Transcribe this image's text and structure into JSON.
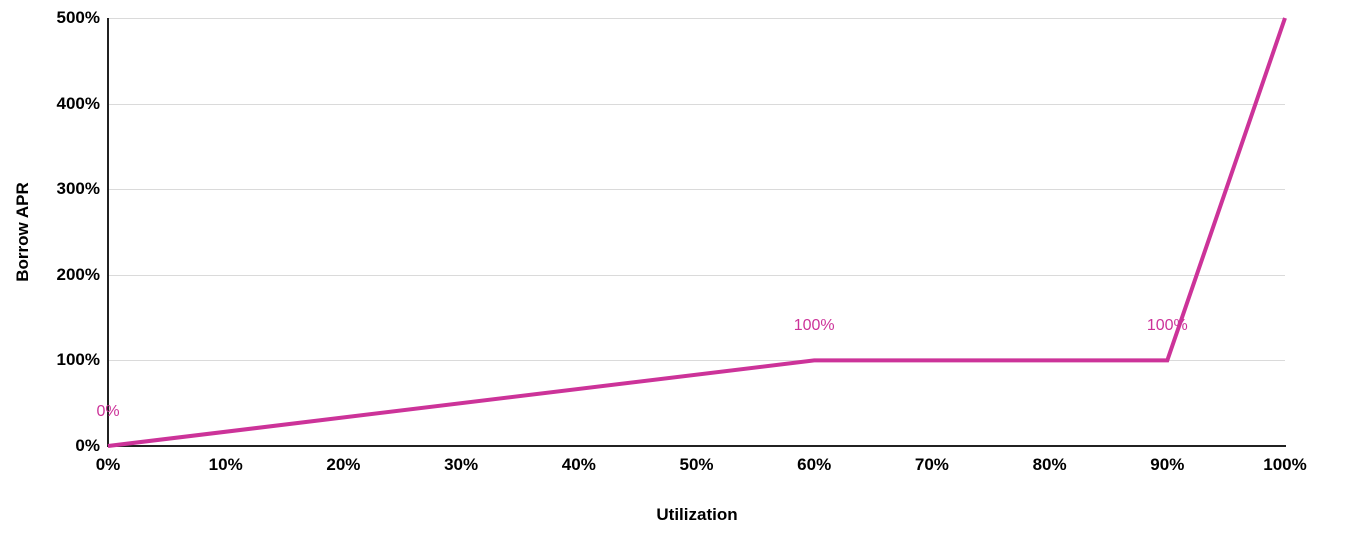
{
  "chart_data": {
    "type": "line",
    "title": "",
    "xlabel": "Utilization",
    "ylabel": "Borrow APR",
    "xlim": [
      0,
      100
    ],
    "ylim": [
      0,
      500
    ],
    "grid": "horizontal",
    "legend": "none",
    "background_color": "#ffffff",
    "gridline_color": "#dadada",
    "axis_color": "#212121",
    "tick_label_color": "#000000",
    "series": [
      {
        "name": "Borrow APR",
        "color": "#cc3399",
        "line_width": 4,
        "points": [
          {
            "x": 0,
            "y": 0
          },
          {
            "x": 60,
            "y": 100
          },
          {
            "x": 90,
            "y": 100
          },
          {
            "x": 100,
            "y": 500
          }
        ]
      }
    ],
    "point_labels": [
      {
        "x": 0,
        "y": 0,
        "text": "0%"
      },
      {
        "x": 60,
        "y": 100,
        "text": "100%"
      },
      {
        "x": 90,
        "y": 100,
        "text": "100%"
      }
    ],
    "x_ticks": [
      {
        "value": 0,
        "label": "0%"
      },
      {
        "value": 10,
        "label": "10%"
      },
      {
        "value": 20,
        "label": "20%"
      },
      {
        "value": 30,
        "label": "30%"
      },
      {
        "value": 40,
        "label": "40%"
      },
      {
        "value": 50,
        "label": "50%"
      },
      {
        "value": 60,
        "label": "60%"
      },
      {
        "value": 70,
        "label": "70%"
      },
      {
        "value": 80,
        "label": "80%"
      },
      {
        "value": 90,
        "label": "90%"
      },
      {
        "value": 100,
        "label": "100%"
      }
    ],
    "y_ticks": [
      {
        "value": 0,
        "label": "0%"
      },
      {
        "value": 100,
        "label": "100%"
      },
      {
        "value": 200,
        "label": "200%"
      },
      {
        "value": 300,
        "label": "300%"
      },
      {
        "value": 400,
        "label": "400%"
      },
      {
        "value": 500,
        "label": "500%"
      }
    ]
  }
}
